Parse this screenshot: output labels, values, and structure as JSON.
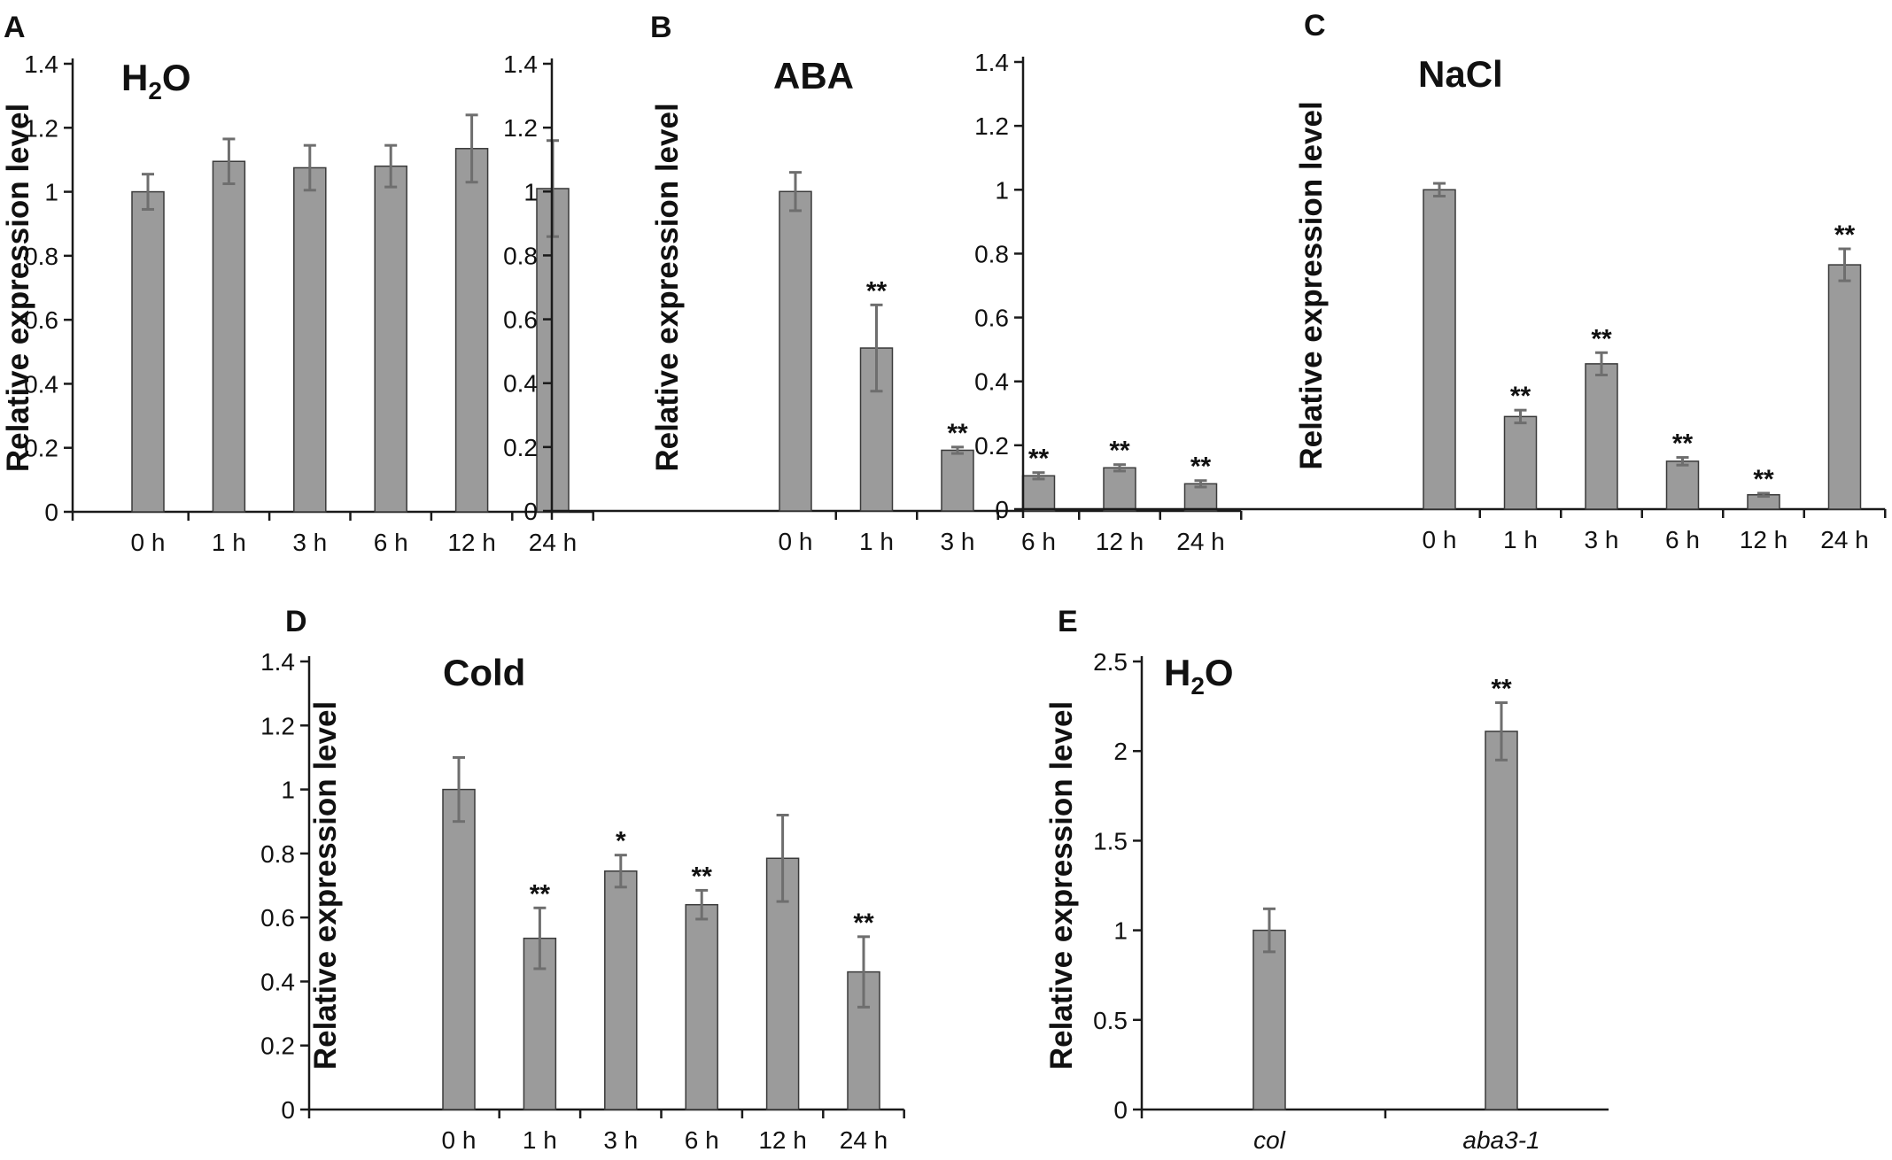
{
  "colors": {
    "bar": "#9b9b9b",
    "bar_edge": "#3a3a3a",
    "error_bar": "#6e6e6e",
    "axis": "#1a1a1a"
  },
  "chart_data": [
    {
      "panel": "A",
      "type": "bar",
      "title": "H2O",
      "title_parts": [
        "H",
        "2",
        "O"
      ],
      "ylabel": "Relative expression level",
      "xlabel": "",
      "categories": [
        "0 h",
        "1 h",
        "3 h",
        "6 h",
        "12 h",
        "24 h"
      ],
      "values": [
        1.0,
        1.095,
        1.075,
        1.08,
        1.135,
        1.01
      ],
      "errors": [
        0.055,
        0.07,
        0.07,
        0.065,
        0.105,
        0.15
      ],
      "significance": [
        "",
        "",
        "",
        "",
        "",
        ""
      ],
      "ylim": [
        0,
        1.4
      ],
      "yticks": [
        0,
        0.2,
        0.4,
        0.6,
        0.8,
        1,
        1.2,
        1.4
      ],
      "ytick_labels": [
        "0",
        "0.2",
        "0.4",
        "0.6",
        "0.8",
        "1",
        "1.2",
        "1.4"
      ],
      "grid": false
    },
    {
      "panel": "B",
      "type": "bar",
      "title": "ABA",
      "title_parts": [
        "ABA"
      ],
      "ylabel": "Relative expression level",
      "xlabel": "",
      "categories": [
        "0 h",
        "1 h",
        "3 h",
        "6 h",
        "12 h",
        "24 h"
      ],
      "values": [
        1.0,
        0.51,
        0.19,
        0.11,
        0.135,
        0.085
      ],
      "errors": [
        0.06,
        0.135,
        0.01,
        0.01,
        0.01,
        0.01
      ],
      "significance": [
        "",
        "**",
        "**",
        "**",
        "**",
        "**"
      ],
      "ylim": [
        0,
        1.4
      ],
      "yticks": [
        0,
        0.2,
        0.4,
        0.6,
        0.8,
        1,
        1.2,
        1.4
      ],
      "ytick_labels": [
        "0",
        "0.2",
        "0.4",
        "0.6",
        "0.8",
        "1",
        "1.2",
        "1.4"
      ],
      "grid": false
    },
    {
      "panel": "C",
      "type": "bar",
      "title": "NaCl",
      "title_parts": [
        "NaCl"
      ],
      "ylabel": "Relative expression level",
      "xlabel": "",
      "categories": [
        "0 h",
        "1 h",
        "3 h",
        "6 h",
        "12 h",
        "24 h"
      ],
      "values": [
        1.0,
        0.29,
        0.455,
        0.15,
        0.045,
        0.765
      ],
      "errors": [
        0.02,
        0.02,
        0.035,
        0.012,
        0.005,
        0.05
      ],
      "significance": [
        "",
        "**",
        "**",
        "**",
        "**",
        "**"
      ],
      "ylim": [
        0,
        1.4
      ],
      "yticks": [
        0,
        0.2,
        0.4,
        0.6,
        0.8,
        1,
        1.2,
        1.4
      ],
      "ytick_labels": [
        "0",
        "0.2",
        "0.4",
        "0.6",
        "0.8",
        "1",
        "1.2",
        "1.4"
      ],
      "grid": false
    },
    {
      "panel": "D",
      "type": "bar",
      "title": "Cold",
      "title_parts": [
        "Cold"
      ],
      "ylabel": "Relative expression level",
      "xlabel": "",
      "categories": [
        "0 h",
        "1 h",
        "3 h",
        "6 h",
        "12 h",
        "24 h"
      ],
      "values": [
        1.0,
        0.535,
        0.745,
        0.64,
        0.785,
        0.43
      ],
      "errors": [
        0.1,
        0.095,
        0.05,
        0.045,
        0.135,
        0.11
      ],
      "significance": [
        "",
        "**",
        "*",
        "**",
        "",
        "**"
      ],
      "ylim": [
        0,
        1.4
      ],
      "yticks": [
        0,
        0.2,
        0.4,
        0.6,
        0.8,
        1,
        1.2,
        1.4
      ],
      "ytick_labels": [
        "0",
        "0.2",
        "0.4",
        "0.6",
        "0.8",
        "1",
        "1.2",
        "1.4"
      ],
      "grid": false
    },
    {
      "panel": "E",
      "type": "bar",
      "title": "H2O",
      "title_parts": [
        "H",
        "2",
        "O"
      ],
      "ylabel": "Relative expression level",
      "xlabel": "",
      "categories": [
        "col",
        "aba3-1"
      ],
      "categories_italic": true,
      "values": [
        1.0,
        2.11
      ],
      "errors": [
        0.12,
        0.16
      ],
      "significance": [
        "",
        "**"
      ],
      "ylim": [
        0,
        2.5
      ],
      "yticks": [
        0,
        0.5,
        1,
        1.5,
        2,
        2.5
      ],
      "ytick_labels": [
        "0",
        "0.5",
        "1",
        "1.5",
        "2",
        "2.5"
      ],
      "grid": false
    }
  ]
}
